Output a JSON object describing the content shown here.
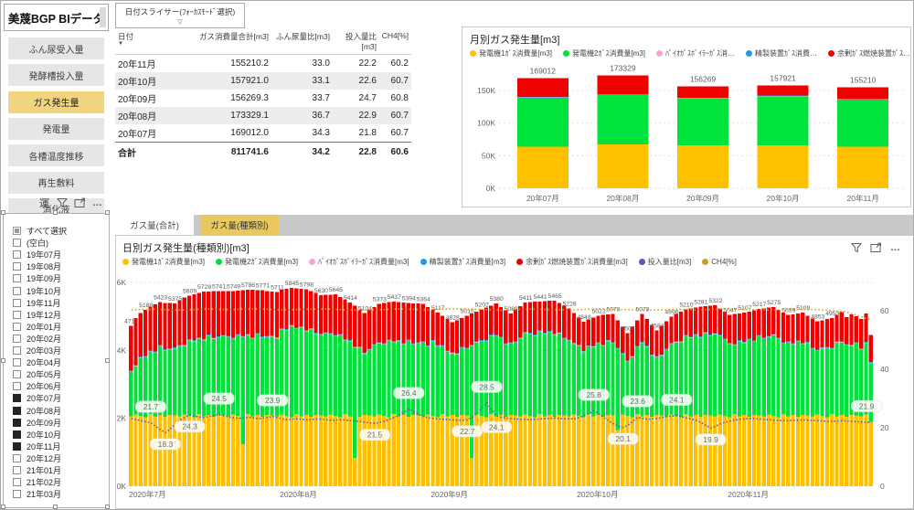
{
  "app": {
    "title": "美蔑BGP BIデータ"
  },
  "sidebar": {
    "nav": [
      {
        "label": "ふん尿受入量",
        "active": false
      },
      {
        "label": "発酵槽投入量",
        "active": false
      },
      {
        "label": "ガス発生量",
        "active": true
      },
      {
        "label": "発電量",
        "active": false
      },
      {
        "label": "各槽温度推移",
        "active": false
      },
      {
        "label": "再生敷料",
        "active": false
      },
      {
        "label": "消化液",
        "active": false
      }
    ],
    "partial_button_label": "運"
  },
  "date_slicer_dropdown": {
    "label": "日付スライサー(ﾌｫｰｶｽﾓｰﾄﾞ選択)",
    "caret": "▽"
  },
  "month_slicer": {
    "items": [
      {
        "label": "すべて選択",
        "state": "partial"
      },
      {
        "label": "(空白)",
        "state": "off"
      },
      {
        "label": "19年07月",
        "state": "off"
      },
      {
        "label": "19年08月",
        "state": "off"
      },
      {
        "label": "19年09月",
        "state": "off"
      },
      {
        "label": "19年10月",
        "state": "off"
      },
      {
        "label": "19年11月",
        "state": "off"
      },
      {
        "label": "19年12月",
        "state": "off"
      },
      {
        "label": "20年01月",
        "state": "off"
      },
      {
        "label": "20年02月",
        "state": "off"
      },
      {
        "label": "20年03月",
        "state": "off"
      },
      {
        "label": "20年04月",
        "state": "off"
      },
      {
        "label": "20年05月",
        "state": "off"
      },
      {
        "label": "20年06月",
        "state": "off"
      },
      {
        "label": "20年07月",
        "state": "on"
      },
      {
        "label": "20年08月",
        "state": "on"
      },
      {
        "label": "20年09月",
        "state": "on"
      },
      {
        "label": "20年10月",
        "state": "on"
      },
      {
        "label": "20年11月",
        "state": "on"
      },
      {
        "label": "20年12月",
        "state": "off"
      },
      {
        "label": "21年01月",
        "state": "off"
      },
      {
        "label": "21年02月",
        "state": "off"
      },
      {
        "label": "21年03月",
        "state": "off"
      }
    ]
  },
  "table": {
    "columns": [
      "日付",
      "ガス消費量合計[m3]",
      "ふん尿量比[m3]",
      "投入量比[m3]",
      "CH4[%]"
    ],
    "rows": [
      [
        "20年11月",
        "155210.2",
        "33.0",
        "22.2",
        "60.2"
      ],
      [
        "20年10月",
        "157921.0",
        "33.1",
        "22.6",
        "60.7"
      ],
      [
        "20年09月",
        "156269.3",
        "33.7",
        "24.7",
        "60.8"
      ],
      [
        "20年08月",
        "173329.1",
        "36.7",
        "22.9",
        "60.7"
      ],
      [
        "20年07月",
        "169012.0",
        "34.3",
        "21.8",
        "60.7"
      ]
    ],
    "total": [
      "合計",
      "811741.6",
      "34.2",
      "22.8",
      "60.6"
    ]
  },
  "tabs": [
    {
      "label": "ガス量(合計)",
      "active": false
    },
    {
      "label": "ガス量(種類別)",
      "active": true
    }
  ],
  "colors": {
    "amber": "#FFC000",
    "green": "#00E23C",
    "red": "#F10000",
    "pink": "#F8A3D6",
    "blue": "#1E9BE6",
    "purple": "#5D54C0",
    "gold": "#C9A11B",
    "nav_active": "#f0d47e",
    "tab_active": "#e8c85f",
    "grid": "#e1e1e1",
    "axis_text": "#666666"
  },
  "chart_data": [
    {
      "type": "bar",
      "stacked": true,
      "title": "月別ガス発生量[m3]",
      "legend": [
        {
          "label": "発電機1ｶﾞｽ消費量[m3]",
          "color": "#FFC000"
        },
        {
          "label": "発電機2ｶﾞｽ消費量[m3]",
          "color": "#00E23C"
        },
        {
          "label": "ﾊﾞｲｵｶﾞｽﾎﾞｲﾗｰｶﾞｽ消…",
          "color": "#F8A3D6"
        },
        {
          "label": "精製装置ｶﾞｽ消費…",
          "color": "#1E9BE6"
        },
        {
          "label": "余剰ｶﾞｽ燃焼装置ｶﾞｽ…",
          "color": "#F10000"
        }
      ],
      "categories": [
        "20年07月",
        "20年08月",
        "20年09月",
        "20年10月",
        "20年11月"
      ],
      "series": [
        {
          "name": "発電機1ｶﾞｽ消費量[m3]",
          "color": "#FFC000",
          "values": [
            64000,
            67000,
            66000,
            66000,
            64000
          ]
        },
        {
          "name": "発電機2ｶﾞｽ消費量[m3]",
          "color": "#00E23C",
          "values": [
            75000,
            76000,
            72000,
            75000,
            72000
          ]
        },
        {
          "name": "ﾊﾞｲｵｶﾞｽﾎﾞｲﾗｰｶﾞｽ消費量[m3]",
          "color": "#F8A3D6",
          "values": [
            500,
            500,
            500,
            500,
            500
          ]
        },
        {
          "name": "精製装置ｶﾞｽ消費量[m3]",
          "color": "#1E9BE6",
          "values": [
            500,
            500,
            500,
            500,
            500
          ]
        },
        {
          "name": "余剰ｶﾞｽ燃焼装置ｶﾞｽ消費量[m3]",
          "color": "#F10000",
          "values": [
            29012,
            29329,
            17269,
            15921,
            18210
          ]
        }
      ],
      "totals": [
        169012,
        173329,
        156269,
        157921,
        155210
      ],
      "y_ticks": [
        "0K",
        "50K",
        "100K",
        "150K"
      ],
      "ylim": [
        0,
        190000
      ],
      "xlabel": "",
      "ylabel": ""
    },
    {
      "type": "bar",
      "stacked": true,
      "title": "日別ガス発生量(種類別)[m3]",
      "legend": [
        {
          "label": "発電機1ｶﾞｽ消費量[m3]",
          "color": "#FFC000"
        },
        {
          "label": "発電機2ｶﾞｽ消費量[m3]",
          "color": "#00E23C"
        },
        {
          "label": "ﾊﾞｲｵｶﾞｽﾎﾞｲﾗｰｶﾞｽ消費量[m3]",
          "color": "#F8A3D6"
        },
        {
          "label": "精製装置ｶﾞｽ消費量[m3]",
          "color": "#1E9BE6"
        },
        {
          "label": "余剰ｶﾞｽ燃焼装置ｶﾞｽ消費量[m3]",
          "color": "#F10000"
        },
        {
          "label": "投入量比[m3]",
          "color": "#5D54C0"
        },
        {
          "label": "CH4[%]",
          "color": "#C9A11B"
        }
      ],
      "left_ticks": [
        "0K",
        "2K",
        "4K",
        "6K"
      ],
      "right_ticks": [
        "0",
        "20",
        "40",
        "60"
      ],
      "month_ticks": [
        {
          "label": "2020年7月",
          "i": 0
        },
        {
          "label": "2020年8月",
          "i": 31
        },
        {
          "label": "2020年9月",
          "i": 62
        },
        {
          "label": "2020年10月",
          "i": 92
        },
        {
          "label": "2020年11月",
          "i": 123
        }
      ],
      "pink_per_day": 15,
      "blue_per_day": 25,
      "totals": [
        4717,
        4950,
        5100,
        5188,
        5290,
        5360,
        5423,
        5400,
        5390,
        5375,
        5480,
        5550,
        5609,
        5650,
        5690,
        5728,
        5735,
        5738,
        5741,
        5744,
        5747,
        5749,
        5760,
        5775,
        5786,
        5780,
        5776,
        5771,
        5750,
        5730,
        5711,
        5780,
        5812,
        5845,
        5830,
        5815,
        5798,
        5740,
        5685,
        5630,
        5635,
        5640,
        5645,
        5570,
        5490,
        5414,
        5310,
        5200,
        5104,
        5190,
        5280,
        5373,
        5395,
        5415,
        5437,
        5420,
        5405,
        5394,
        5385,
        5375,
        5364,
        5280,
        5200,
        5117,
        5020,
        4920,
        4828,
        4890,
        4950,
        5015,
        5080,
        5140,
        5202,
        5260,
        5320,
        5380,
        5280,
        5180,
        5089,
        5200,
        5300,
        5411,
        5420,
        5430,
        5441,
        5450,
        5458,
        5465,
        5390,
        5310,
        5228,
        5100,
        4970,
        4848,
        4910,
        4965,
        5022,
        5040,
        5060,
        5078,
        4890,
        4700,
        4503,
        4700,
        4890,
        5078,
        4920,
        4750,
        4584,
        4720,
        4860,
        4996,
        5070,
        5140,
        5210,
        5235,
        5258,
        5281,
        5295,
        5308,
        5322,
        5230,
        5140,
        5047,
        5067,
        5087,
        5107,
        5143,
        5180,
        5217,
        5236,
        5255,
        5275,
        5196,
        5118,
        5039,
        5062,
        5085,
        5109,
        5024,
        4938,
        4853,
        4886,
        4920,
        4953,
        5050,
        5120,
        4980,
        5060,
        5010,
        4920,
        5080,
        4453
      ],
      "yellow": [
        2060,
        2110,
        2075,
        2035,
        2120,
        2065,
        2095,
        2045,
        2105,
        2080,
        2060,
        2110,
        2075,
        2035,
        2120,
        2065,
        2095,
        2045,
        2105,
        2080,
        2060,
        2110,
        2075,
        1240,
        2120,
        2065,
        2095,
        2045,
        2105,
        2080,
        2060,
        2110,
        2075,
        2035,
        2120,
        2065,
        2095,
        2045,
        2105,
        2080,
        2060,
        2110,
        2075,
        2035,
        2120,
        2065,
        830,
        2045,
        2105,
        2080,
        2060,
        2110,
        2075,
        2035,
        2120,
        2065,
        2095,
        2045,
        2105,
        2080,
        2060,
        2110,
        2075,
        2035,
        2120,
        2065,
        2095,
        2045,
        2105,
        2080,
        830,
        2110,
        2075,
        2035,
        2120,
        2065,
        2095,
        2045,
        2105,
        2080,
        2060,
        2110,
        2075,
        2035,
        2120,
        2065,
        2095,
        2045,
        2105,
        2080,
        2060,
        2110,
        2075,
        2035,
        2120,
        2065,
        2095,
        2045,
        2105,
        2080,
        1650,
        2110,
        2075,
        2035,
        2120,
        2065,
        2095,
        2045,
        2105,
        2080,
        2060,
        2110,
        2075,
        2035,
        2120,
        2065,
        2095,
        2045,
        2105,
        2080,
        2060,
        2110,
        2075,
        2035,
        2120,
        2065,
        2095,
        2045,
        2105,
        2080,
        2060,
        2110,
        2075,
        2035,
        2120,
        2065,
        2095,
        2045,
        2105,
        2080,
        2060,
        2110,
        2075,
        2035,
        2120,
        2065,
        2095,
        2045,
        2105,
        2080,
        2060,
        2110,
        1900
      ],
      "red": [
        1320,
        1380,
        1280,
        1350,
        1300,
        1390,
        1270,
        1360,
        1330,
        1290,
        1320,
        1380,
        1280,
        1350,
        1300,
        1390,
        1270,
        1360,
        1330,
        1290,
        1320,
        1380,
        1280,
        1350,
        1300,
        1390,
        1270,
        1360,
        1330,
        1290,
        1320,
        1130,
        1190,
        1090,
        1160,
        1110,
        1200,
        1080,
        1170,
        1140,
        1100,
        1130,
        1190,
        1090,
        1160,
        1110,
        1200,
        1080,
        1170,
        1140,
        1100,
        1130,
        1190,
        1090,
        1160,
        1110,
        1200,
        1080,
        1170,
        1140,
        1100,
        1130,
        900,
        960,
        860,
        930,
        880,
        970,
        850,
        940,
        910,
        870,
        900,
        960,
        860,
        930,
        880,
        970,
        850,
        940,
        910,
        870,
        900,
        960,
        860,
        930,
        880,
        970,
        850,
        940,
        910,
        870,
        800,
        860,
        760,
        830,
        780,
        870,
        750,
        840,
        810,
        770,
        800,
        860,
        760,
        830,
        780,
        870,
        750,
        840,
        810,
        770,
        800,
        860,
        760,
        830,
        780,
        870,
        750,
        840,
        810,
        770,
        800,
        820,
        880,
        780,
        850,
        800,
        890,
        770,
        860,
        830,
        790,
        820,
        880,
        780,
        850,
        800,
        890,
        770,
        860,
        830,
        790,
        820,
        880,
        780,
        850,
        800,
        890,
        770,
        860,
        830,
        790
      ],
      "purple_line": [
        23.2,
        22.8,
        22.4,
        22.0,
        21.7,
        20.5,
        19.3,
        18.3,
        19.6,
        21.2,
        22.6,
        23.6,
        24.3,
        24.0,
        23.7,
        23.5,
        23.8,
        24.2,
        24.5,
        24.1,
        23.7,
        23.4,
        23.2,
        23.4,
        23.6,
        23.4,
        23.1,
        23.3,
        23.5,
        23.9,
        23.5,
        23.0,
        22.8,
        22.9,
        23.1,
        22.9,
        22.7,
        22.8,
        23.0,
        22.9,
        22.7,
        22.5,
        22.6,
        22.8,
        22.6,
        22.4,
        22.3,
        22.1,
        21.9,
        21.7,
        21.5,
        21.8,
        22.3,
        22.9,
        23.5,
        24.2,
        25.3,
        26.4,
        25.6,
        24.6,
        23.8,
        23.4,
        23.2,
        23.0,
        22.9,
        22.8,
        22.7,
        22.6,
        22.6,
        22.7,
        23.6,
        25.0,
        26.8,
        28.5,
        26.2,
        24.1,
        23.6,
        23.3,
        23.1,
        23.0,
        22.9,
        22.8,
        22.8,
        22.9,
        23.0,
        23.1,
        23.2,
        23.3,
        23.2,
        23.1,
        23.0,
        23.1,
        23.5,
        24.1,
        24.9,
        25.8,
        24.8,
        23.6,
        22.4,
        21.4,
        20.6,
        20.1,
        20.8,
        22.2,
        23.6,
        23.2,
        22.9,
        23.0,
        23.2,
        23.5,
        23.8,
        24.0,
        24.1,
        23.8,
        23.4,
        23.0,
        22.5,
        21.8,
        20.8,
        19.9,
        20.5,
        21.3,
        21.9,
        22.3,
        22.6,
        22.9,
        23.1,
        23.2,
        23.1,
        23.0,
        22.8,
        22.7,
        22.6,
        22.5,
        22.4,
        22.4,
        22.5,
        22.6,
        22.7,
        22.6,
        22.5,
        22.4,
        22.3,
        22.2,
        22.2,
        22.3,
        22.4,
        22.3,
        22.2,
        22.1,
        22.0,
        21.9,
        21.8
      ],
      "ch4_points": [
        60.3,
        60.5,
        60.2,
        60.6,
        60.4,
        60.7,
        60.3,
        60.5,
        60.6,
        60.2,
        60.4,
        60.6,
        60.3,
        60.7,
        60.5,
        60.2,
        60.6,
        60.4,
        60.3,
        60.7,
        60.4,
        60.2,
        60.5,
        60.3,
        60.6,
        60.4,
        60.2,
        60.5,
        60.3,
        59.6,
        56.8
      ],
      "label_days": [
        0,
        3,
        6,
        9,
        12,
        15,
        18,
        21,
        24,
        27,
        30,
        33,
        36,
        39,
        42,
        45,
        48,
        51,
        54,
        57,
        60,
        63,
        66,
        69,
        72,
        75,
        78,
        81,
        84,
        87,
        90,
        93,
        96,
        99,
        102,
        105,
        108,
        111,
        114,
        117,
        120,
        123,
        126,
        129,
        132,
        135,
        138,
        141,
        144
      ],
      "label_values": [
        4717,
        5188,
        5423,
        5375,
        5609,
        5728,
        5741,
        5749,
        5786,
        5771,
        5711,
        5845,
        5798,
        5630,
        5645,
        5414,
        5104,
        5373,
        5437,
        5394,
        5364,
        5117,
        4828,
        5015,
        5202,
        5380,
        5089,
        5411,
        5441,
        5465,
        5228,
        4848,
        5022,
        5078,
        4503,
        5078,
        4584,
        4996,
        5210,
        5281,
        5322,
        5047,
        5107,
        5217,
        5275,
        5039,
        5109,
        4853,
        4953
      ],
      "callouts": [
        {
          "i": 4,
          "v": "21.7",
          "pos": "above"
        },
        {
          "i": 7,
          "v": "18.3",
          "pos": "below"
        },
        {
          "i": 12,
          "v": "24.3",
          "pos": "below"
        },
        {
          "i": 18,
          "v": "24.5",
          "pos": "above"
        },
        {
          "i": 29,
          "v": "23.9",
          "pos": "above"
        },
        {
          "i": 50,
          "v": "21.5",
          "pos": "below"
        },
        {
          "i": 57,
          "v": "26.4",
          "pos": "above"
        },
        {
          "i": 69,
          "v": "22.7",
          "pos": "below"
        },
        {
          "i": 73,
          "v": "28.5",
          "pos": "above"
        },
        {
          "i": 75,
          "v": "24.1",
          "pos": "below"
        },
        {
          "i": 95,
          "v": "25.8",
          "pos": "above"
        },
        {
          "i": 101,
          "v": "20.1",
          "pos": "below"
        },
        {
          "i": 104,
          "v": "23.6",
          "pos": "above"
        },
        {
          "i": 112,
          "v": "24.1",
          "pos": "above"
        },
        {
          "i": 119,
          "v": "19.9",
          "pos": "below"
        },
        {
          "i": 151,
          "v": "21.9",
          "pos": "above"
        }
      ]
    }
  ]
}
